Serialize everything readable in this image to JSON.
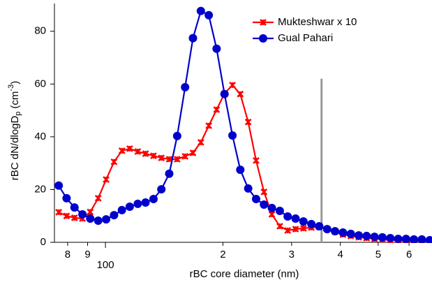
{
  "chart_data": {
    "type": "line",
    "xlabel": "rBC core diameter (nm)",
    "ylabel": "rBC dN/dlogD",
    "ylabel_sub": "p",
    "ylabel_unit": "(cm",
    "ylabel_sup": "-3",
    "ylabel_end": ")",
    "xscale": "log",
    "xlim": [
      74,
      687
    ],
    "ylim": [
      0,
      90
    ],
    "xticks": [
      {
        "value": 80,
        "label": "8"
      },
      {
        "value": 90,
        "label": "9"
      },
      100,
      {
        "value": 200,
        "label": "2"
      },
      {
        "value": 300,
        "label": "3"
      },
      {
        "value": 400,
        "label": "4"
      },
      {
        "value": 500,
        "label": "5"
      },
      {
        "value": 600,
        "label": "6"
      }
    ],
    "yticks": [
      0,
      20,
      40,
      60,
      80
    ],
    "legend": "top-right",
    "x": [
      75.9,
      79.5,
      83.3,
      87.3,
      91.4,
      95.8,
      100.4,
      105.2,
      110.2,
      115.4,
      121.0,
      126.7,
      132.8,
      139.1,
      145.7,
      152.7,
      160.0,
      167.6,
      175.6,
      184.0,
      192.7,
      201.9,
      211.6,
      221.6,
      232.2,
      243.3,
      254.9,
      267.0,
      279.8,
      293.1,
      307.1,
      321.7,
      337.1,
      353.1,
      370.0,
      387.6,
      406.1,
      425.5,
      445.8,
      467.0,
      489.3,
      512.6,
      537.1,
      562.7,
      589.5,
      617.6,
      647.1,
      678.0
    ],
    "series": [
      {
        "name": "Mukteshwar x 10",
        "color": "#ff0000",
        "marker": "x",
        "values": [
          11.4,
          10,
          9.3,
          9,
          11.5,
          16.7,
          23.8,
          30.5,
          34.7,
          35.5,
          34.4,
          33.6,
          32.8,
          32,
          31.5,
          31.5,
          32.6,
          33.9,
          37.9,
          44.2,
          50.3,
          56.4,
          59.6,
          56.2,
          45.6,
          31,
          19.1,
          10.6,
          6.1,
          4.5,
          5,
          5.3,
          5.6,
          5.8,
          5,
          4,
          2.9,
          2.4,
          1.9,
          1.6,
          1.3,
          1.1,
          0.8,
          0.8,
          0.5,
          0.5,
          0.5,
          0.3
        ]
      },
      {
        "name": "Gual Pahari",
        "color": "#0000cc",
        "marker": "circle",
        "values": [
          21.5,
          16.7,
          13.2,
          10.6,
          9,
          8.2,
          8.7,
          10.3,
          12.2,
          13.5,
          14.6,
          15.1,
          16.4,
          20.1,
          26,
          40.3,
          58.8,
          77.4,
          87.7,
          86.1,
          73.4,
          56.2,
          40.5,
          27.5,
          20.4,
          16.4,
          14.3,
          13,
          11.9,
          9.8,
          9,
          7.9,
          6.9,
          6.1,
          5,
          4.2,
          3.7,
          3.2,
          2.6,
          2.4,
          2.1,
          1.9,
          1.6,
          1.3,
          1.3,
          1.1,
          1.1,
          0.8
        ]
      }
    ],
    "vline": {
      "x": 358,
      "y": 62,
      "color": "#999999"
    }
  }
}
